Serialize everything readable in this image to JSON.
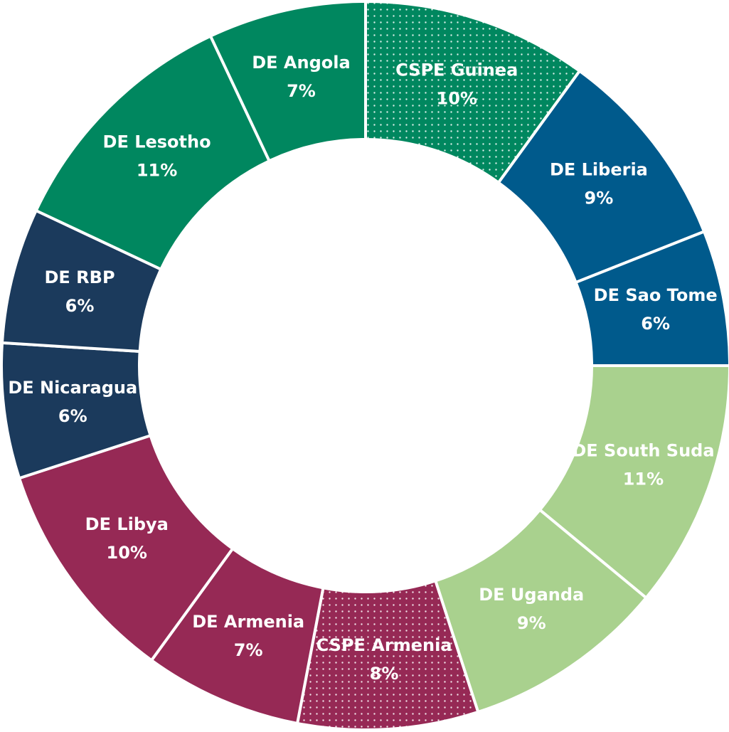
{
  "chart_data": {
    "type": "donut",
    "categories": [
      "CSPE Guinea",
      "DE Liberia",
      "DE Sao Tome",
      "DE South Suda",
      "DE Uganda",
      "CSPE Armenia",
      "DE Armenia",
      "DE Libya",
      "DE Nicaragua",
      "DE RBP",
      "DE Lesotho",
      "DE Angola"
    ],
    "values": [
      10,
      9,
      6,
      11,
      9,
      8,
      7,
      10,
      6,
      6,
      11,
      7
    ],
    "value_labels": [
      "10%",
      "9%",
      "6%",
      "11%",
      "9%",
      "8%",
      "7%",
      "10%",
      "6%",
      "6%",
      "11%",
      "7%"
    ],
    "colors": [
      "#00875f",
      "#005a8c",
      "#005a8c",
      "#a9d18e",
      "#a9d18e",
      "#962955",
      "#962955",
      "#962955",
      "#1b3a5c",
      "#1b3a5c",
      "#00875f",
      "#00875f"
    ],
    "dotted": [
      true,
      false,
      false,
      false,
      false,
      true,
      false,
      false,
      false,
      false,
      false,
      false
    ]
  }
}
